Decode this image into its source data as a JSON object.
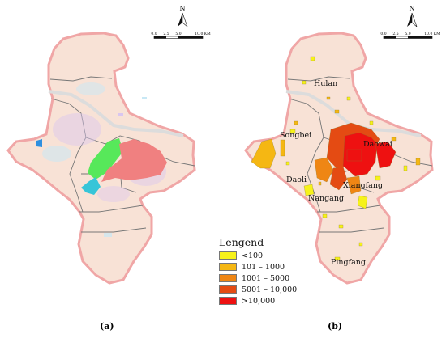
{
  "panels": [
    {
      "label": "(a)",
      "north": "N",
      "scale": {
        "ticks": [
          "0.0",
          "2.5",
          "5.0",
          "10.0 KM"
        ]
      }
    },
    {
      "label": "(b)",
      "north": "N",
      "scale": {
        "ticks": [
          "0.0",
          "2.5",
          "5.0",
          "10.0 KM"
        ]
      },
      "places": [
        "Hulan",
        "Songbei",
        "Daowai",
        "Daoli",
        "Xiangfang",
        "Nangang",
        "Pingfang"
      ]
    }
  ],
  "legend": {
    "title": "Lengend",
    "items": [
      {
        "label": "<100",
        "color": "#f6f21a"
      },
      {
        "label": "101 – 1000",
        "color": "#f5b713"
      },
      {
        "label": "1001 – 5000",
        "color": "#ef8614"
      },
      {
        "label": "5001 – 10,000",
        "color": "#e44b13"
      },
      {
        "label": ">10,000",
        "color": "#ee1111"
      }
    ]
  },
  "colors": {
    "region_fill": "#f8e2d6",
    "region_border": "#f0a6a6",
    "district_line": "#777777",
    "river": "#dcdcdc",
    "green_patch": "#57e85a",
    "pink_patch": "#f08080",
    "cyan_patch": "#37c5d8",
    "blue_patch": "#2e8fe0"
  }
}
